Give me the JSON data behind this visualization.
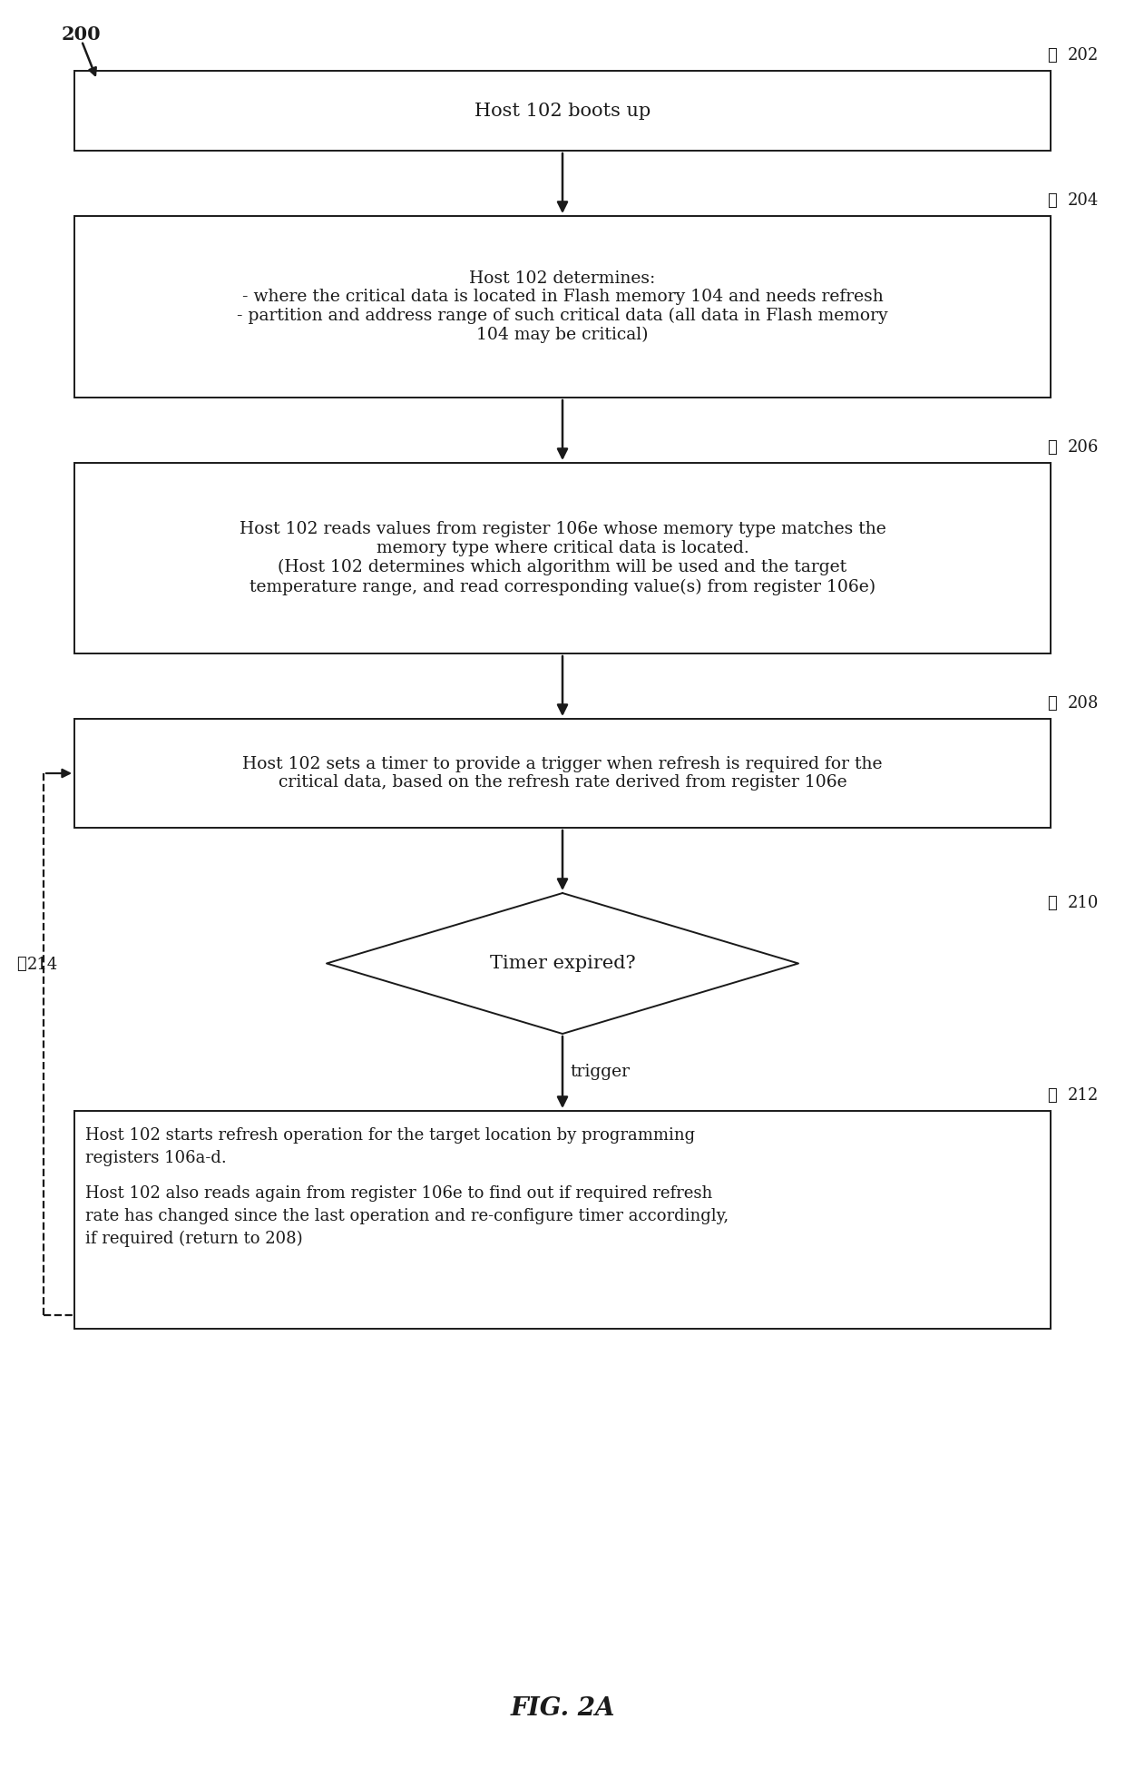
{
  "bg_color": "#ffffff",
  "line_color": "#1a1a1a",
  "text_color": "#1a1a1a",
  "fig_title": "FIG. 2A",
  "label_200": "200",
  "label_202": "202",
  "label_204": "204",
  "label_206": "206",
  "label_208": "208",
  "label_210": "210",
  "label_212": "212",
  "label_214": "214",
  "box202_text": "Host 102 boots up",
  "box204_line1": "Host 102 determines:",
  "box204_line2": "- where the critical data is located in Flash memory 104 and needs refresh",
  "box204_line3": "- partition and address range of such critical data (all data in Flash memory",
  "box204_line4": "104 may be critical)",
  "box206_line1": "Host 102 reads values from register 106e whose memory type matches the",
  "box206_line2": "memory type where critical data is located.",
  "box206_line3": "(Host 102 determines which algorithm will be used and the target",
  "box206_line4": "temperature range, and read corresponding value(s) from register 106e)",
  "box208_line1": "Host 102 sets a timer to provide a trigger when refresh is required for the",
  "box208_line2": "critical data, based on the refresh rate derived from register 106e",
  "diamond210_text": "Timer expired?",
  "box212_line1": "Host 102 starts refresh operation for the target location by programming",
  "box212_line2": "registers 106a-d.",
  "box212_line3": "",
  "box212_line4": "Host 102 also reads again from register 106e to find out if required refresh",
  "box212_line5": "rate has changed since the last operation and re-configure timer accordingly,",
  "box212_line6": "if required (return to 208)",
  "trigger_label": "trigger"
}
